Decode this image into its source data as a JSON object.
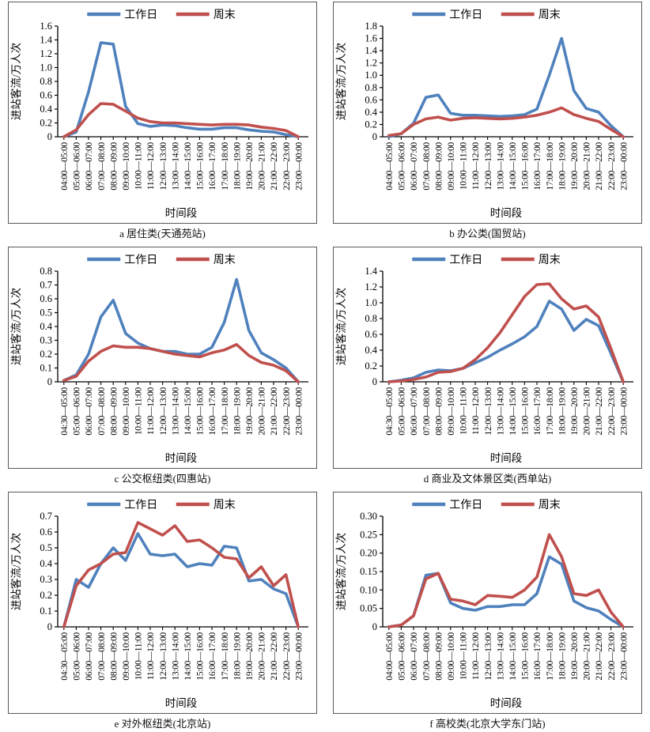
{
  "figure": {
    "legend": {
      "weekday": "工作日",
      "weekend": "周末"
    },
    "colors": {
      "weekday": "#4F81BD",
      "weekend": "#C0504D",
      "axis": "#000000",
      "panel_border": "#595959"
    },
    "ylabel": "进站客流/万人次",
    "xlabel": "时间段"
  },
  "chart_data": [
    {
      "id": "a",
      "type": "line",
      "caption": "a 居住类(天通苑站)",
      "category_type": "居住类",
      "station": "天通苑站",
      "xlabel": "时间段",
      "ylabel": "进站客流/万人次",
      "ylim": [
        0,
        1.6
      ],
      "ytick_labels": [
        "0",
        "0.2",
        "0.4",
        "0.6",
        "0.8",
        "1.0",
        "1.2",
        "1.4",
        "1.6"
      ],
      "legend_position": "top",
      "categories": [
        "04:00—05:00",
        "05:00—06:00",
        "06:00—07:00",
        "07:00—08:00",
        "08:00—09:00",
        "09:00—10:00",
        "10:00—11:00",
        "11:00—12:00",
        "12:00—13:00",
        "13:00—14:00",
        "14:00—15:00",
        "15:00—16:00",
        "16:00—17:00",
        "17:00—18:00",
        "18:00—19:00",
        "19:00—20:00",
        "20:00—21:00",
        "21:00—22:00",
        "22:00—23:00",
        "23:00—00:00"
      ],
      "series": [
        {
          "name": "工作日",
          "key": "weekday",
          "values": [
            0,
            0.07,
            0.65,
            1.36,
            1.34,
            0.44,
            0.19,
            0.15,
            0.17,
            0.16,
            0.13,
            0.11,
            0.11,
            0.13,
            0.13,
            0.1,
            0.08,
            0.07,
            0.03,
            0
          ]
        },
        {
          "name": "周末",
          "key": "weekend",
          "values": [
            0,
            0.1,
            0.32,
            0.48,
            0.47,
            0.37,
            0.27,
            0.22,
            0.2,
            0.2,
            0.19,
            0.18,
            0.17,
            0.18,
            0.18,
            0.17,
            0.14,
            0.12,
            0.09,
            0
          ]
        }
      ]
    },
    {
      "id": "b",
      "type": "line",
      "caption": "b 办公类(国贸站)",
      "category_type": "办公类",
      "station": "国贸站",
      "xlabel": "时间段",
      "ylabel": "进站客流/万人次",
      "ylim": [
        0,
        1.8
      ],
      "ytick_labels": [
        "0",
        "0.2",
        "0.4",
        "0.6",
        "0.8",
        "1.0",
        "1.2",
        "1.4",
        "1.6",
        "1.8"
      ],
      "legend_position": "top",
      "categories": [
        "04:00—05:00",
        "05:00—06:00",
        "06:00—07:00",
        "07:00—08:00",
        "08:00—09:00",
        "09:00—10:00",
        "10:00—11:00",
        "11:00—12:00",
        "12:00—13:00",
        "13:00—14:00",
        "14:00—15:00",
        "15:00—16:00",
        "16:00—17:00",
        "17:00—18:00",
        "18:00—19:00",
        "19:00—20:00",
        "20:00—21:00",
        "21:00—22:00",
        "22:00—23:00",
        "23:00—00:00"
      ],
      "series": [
        {
          "name": "工作日",
          "key": "weekday",
          "values": [
            0,
            0.05,
            0.22,
            0.64,
            0.68,
            0.38,
            0.35,
            0.35,
            0.34,
            0.33,
            0.34,
            0.36,
            0.45,
            1.0,
            1.6,
            0.75,
            0.46,
            0.4,
            0.18,
            0
          ]
        },
        {
          "name": "周末",
          "key": "weekend",
          "values": [
            0.02,
            0.05,
            0.2,
            0.29,
            0.32,
            0.27,
            0.3,
            0.31,
            0.3,
            0.29,
            0.3,
            0.32,
            0.35,
            0.4,
            0.47,
            0.36,
            0.3,
            0.25,
            0.12,
            0
          ]
        }
      ]
    },
    {
      "id": "c",
      "type": "line",
      "caption": "c 公交枢纽类(四惠站)",
      "category_type": "公交枢纽类",
      "station": "四惠站",
      "xlabel": "时间段",
      "ylabel": "进站客流/万人次",
      "ylim": [
        0,
        0.8
      ],
      "ytick_labels": [
        "0",
        "0.1",
        "0.2",
        "0.3",
        "0.4",
        "0.5",
        "0.6",
        "0.7",
        "0.8"
      ],
      "legend_position": "top",
      "categories": [
        "04:30—05:00",
        "05:00—06:00",
        "06:00—07:00",
        "07:00—08:00",
        "08:00—09:00",
        "09:00—10:00",
        "10:00—11:00",
        "11:00—12:00",
        "12:00—13:00",
        "13:00—14:00",
        "14:00—15:00",
        "15:00—16:00",
        "16:00—17:00",
        "17:00—18:00",
        "18:00—19:00",
        "19:00—20:00",
        "20:00—21:00",
        "21:00—22:00",
        "22:00—23:00",
        "23:00—00:00"
      ],
      "series": [
        {
          "name": "工作日",
          "key": "weekday",
          "values": [
            0.01,
            0.05,
            0.2,
            0.47,
            0.59,
            0.35,
            0.28,
            0.24,
            0.22,
            0.22,
            0.2,
            0.2,
            0.25,
            0.43,
            0.74,
            0.37,
            0.21,
            0.16,
            0.1,
            0
          ]
        },
        {
          "name": "周末",
          "key": "weekend",
          "values": [
            0.01,
            0.04,
            0.15,
            0.22,
            0.26,
            0.25,
            0.25,
            0.24,
            0.22,
            0.2,
            0.19,
            0.18,
            0.21,
            0.23,
            0.27,
            0.19,
            0.14,
            0.12,
            0.08,
            0
          ]
        }
      ]
    },
    {
      "id": "d",
      "type": "line",
      "caption": "d 商业及文体景区类(西单站)",
      "category_type": "商业及文体景区类",
      "station": "西单站",
      "xlabel": "时间段",
      "ylabel": "进站客流/万人次",
      "ylim": [
        0,
        1.4
      ],
      "ytick_labels": [
        "0",
        "0.2",
        "0.4",
        "0.6",
        "0.8",
        "1.0",
        "1.2",
        "1.4"
      ],
      "legend_position": "top",
      "categories": [
        "04:30—05:00",
        "05:00—06:00",
        "06:00—07:00",
        "07:00—08:00",
        "08:00—09:00",
        "09:00—10:00",
        "10:00—11:00",
        "11:00—12:00",
        "12:00—13:00",
        "13:00—14:00",
        "14:00—15:00",
        "15:00—16:00",
        "16:00—17:00",
        "17:00—18:00",
        "18:00—19:00",
        "19:00—20:00",
        "20:00—21:00",
        "21:00—22:00",
        "22:00—23:00",
        "23:00—00:00"
      ],
      "series": [
        {
          "name": "工作日",
          "key": "weekday",
          "values": [
            0,
            0.02,
            0.05,
            0.12,
            0.15,
            0.14,
            0.17,
            0.24,
            0.31,
            0.4,
            0.48,
            0.57,
            0.7,
            1.02,
            0.92,
            0.65,
            0.79,
            0.71,
            0.36,
            0
          ]
        },
        {
          "name": "周末",
          "key": "weekend",
          "values": [
            0,
            0.01,
            0.03,
            0.06,
            0.12,
            0.13,
            0.17,
            0.28,
            0.43,
            0.62,
            0.85,
            1.08,
            1.23,
            1.24,
            1.05,
            0.92,
            0.96,
            0.82,
            0.42,
            0
          ]
        }
      ]
    },
    {
      "id": "e",
      "type": "line",
      "caption": "e 对外枢纽类(北京站)",
      "category_type": "对外枢纽类",
      "station": "北京站",
      "xlabel": "时间段",
      "ylabel": "进站客流/万人次",
      "ylim": [
        0,
        0.7
      ],
      "ytick_labels": [
        "0",
        "0.1",
        "0.2",
        "0.3",
        "0.4",
        "0.5",
        "0.6",
        "0.7"
      ],
      "legend_position": "top",
      "categories": [
        "04:30—05:00",
        "05:00—06:00",
        "06:00—07:00",
        "07:00—08:00",
        "08:00—09:00",
        "09:00—10:00",
        "10:00—11:00",
        "11:00—12:00",
        "12:00—13:00",
        "13:00—14:00",
        "14:00—15:00",
        "15:00—16:00",
        "16:00—17:00",
        "17:00—18:00",
        "18:00—19:00",
        "19:00—20:00",
        "20:00—21:00",
        "21:00—22:00",
        "22:00—23:00",
        "23:00—00:00"
      ],
      "series": [
        {
          "name": "工作日",
          "key": "weekday",
          "values": [
            0,
            0.3,
            0.25,
            0.4,
            0.5,
            0.42,
            0.59,
            0.46,
            0.45,
            0.46,
            0.38,
            0.4,
            0.39,
            0.51,
            0.5,
            0.29,
            0.3,
            0.24,
            0.21,
            0
          ]
        },
        {
          "name": "周末",
          "key": "weekend",
          "values": [
            0,
            0.26,
            0.36,
            0.4,
            0.46,
            0.47,
            0.66,
            0.62,
            0.58,
            0.64,
            0.54,
            0.55,
            0.5,
            0.44,
            0.43,
            0.31,
            0.38,
            0.26,
            0.33,
            0
          ]
        }
      ]
    },
    {
      "id": "f",
      "type": "line",
      "caption": "f 高校类(北京大学东门站)",
      "category_type": "高校类",
      "station": "北京大学东门站",
      "xlabel": "时间段",
      "ylabel": "进站客流/万人次",
      "ylim": [
        0,
        0.3
      ],
      "ytick_labels": [
        "0",
        "0.05",
        "0.10",
        "0.15",
        "0.20",
        "0.25",
        "0.30"
      ],
      "legend_position": "top",
      "categories": [
        "04:00—05:00",
        "05:00—06:00",
        "06:00—07:00",
        "07:00—08:00",
        "08:00—09:00",
        "09:00—10:00",
        "10:00—11:00",
        "11:00—12:00",
        "12:00—13:00",
        "13:00—14:00",
        "14:00—15:00",
        "15:00—16:00",
        "16:00—17:00",
        "17:00—18:00",
        "18:00—19:00",
        "19:00—20:00",
        "20:00—21:00",
        "21:00—22:00",
        "22:00—23:00",
        "23:00—00:00"
      ],
      "series": [
        {
          "name": "工作日",
          "key": "weekday",
          "values": [
            0,
            0.005,
            0.03,
            0.14,
            0.145,
            0.065,
            0.05,
            0.045,
            0.055,
            0.055,
            0.06,
            0.06,
            0.09,
            0.19,
            0.17,
            0.07,
            0.052,
            0.043,
            0.02,
            0
          ]
        },
        {
          "name": "周末",
          "key": "weekend",
          "values": [
            0,
            0.005,
            0.03,
            0.13,
            0.145,
            0.075,
            0.07,
            0.06,
            0.085,
            0.083,
            0.08,
            0.1,
            0.135,
            0.25,
            0.19,
            0.09,
            0.085,
            0.1,
            0.04,
            0
          ]
        }
      ]
    }
  ]
}
